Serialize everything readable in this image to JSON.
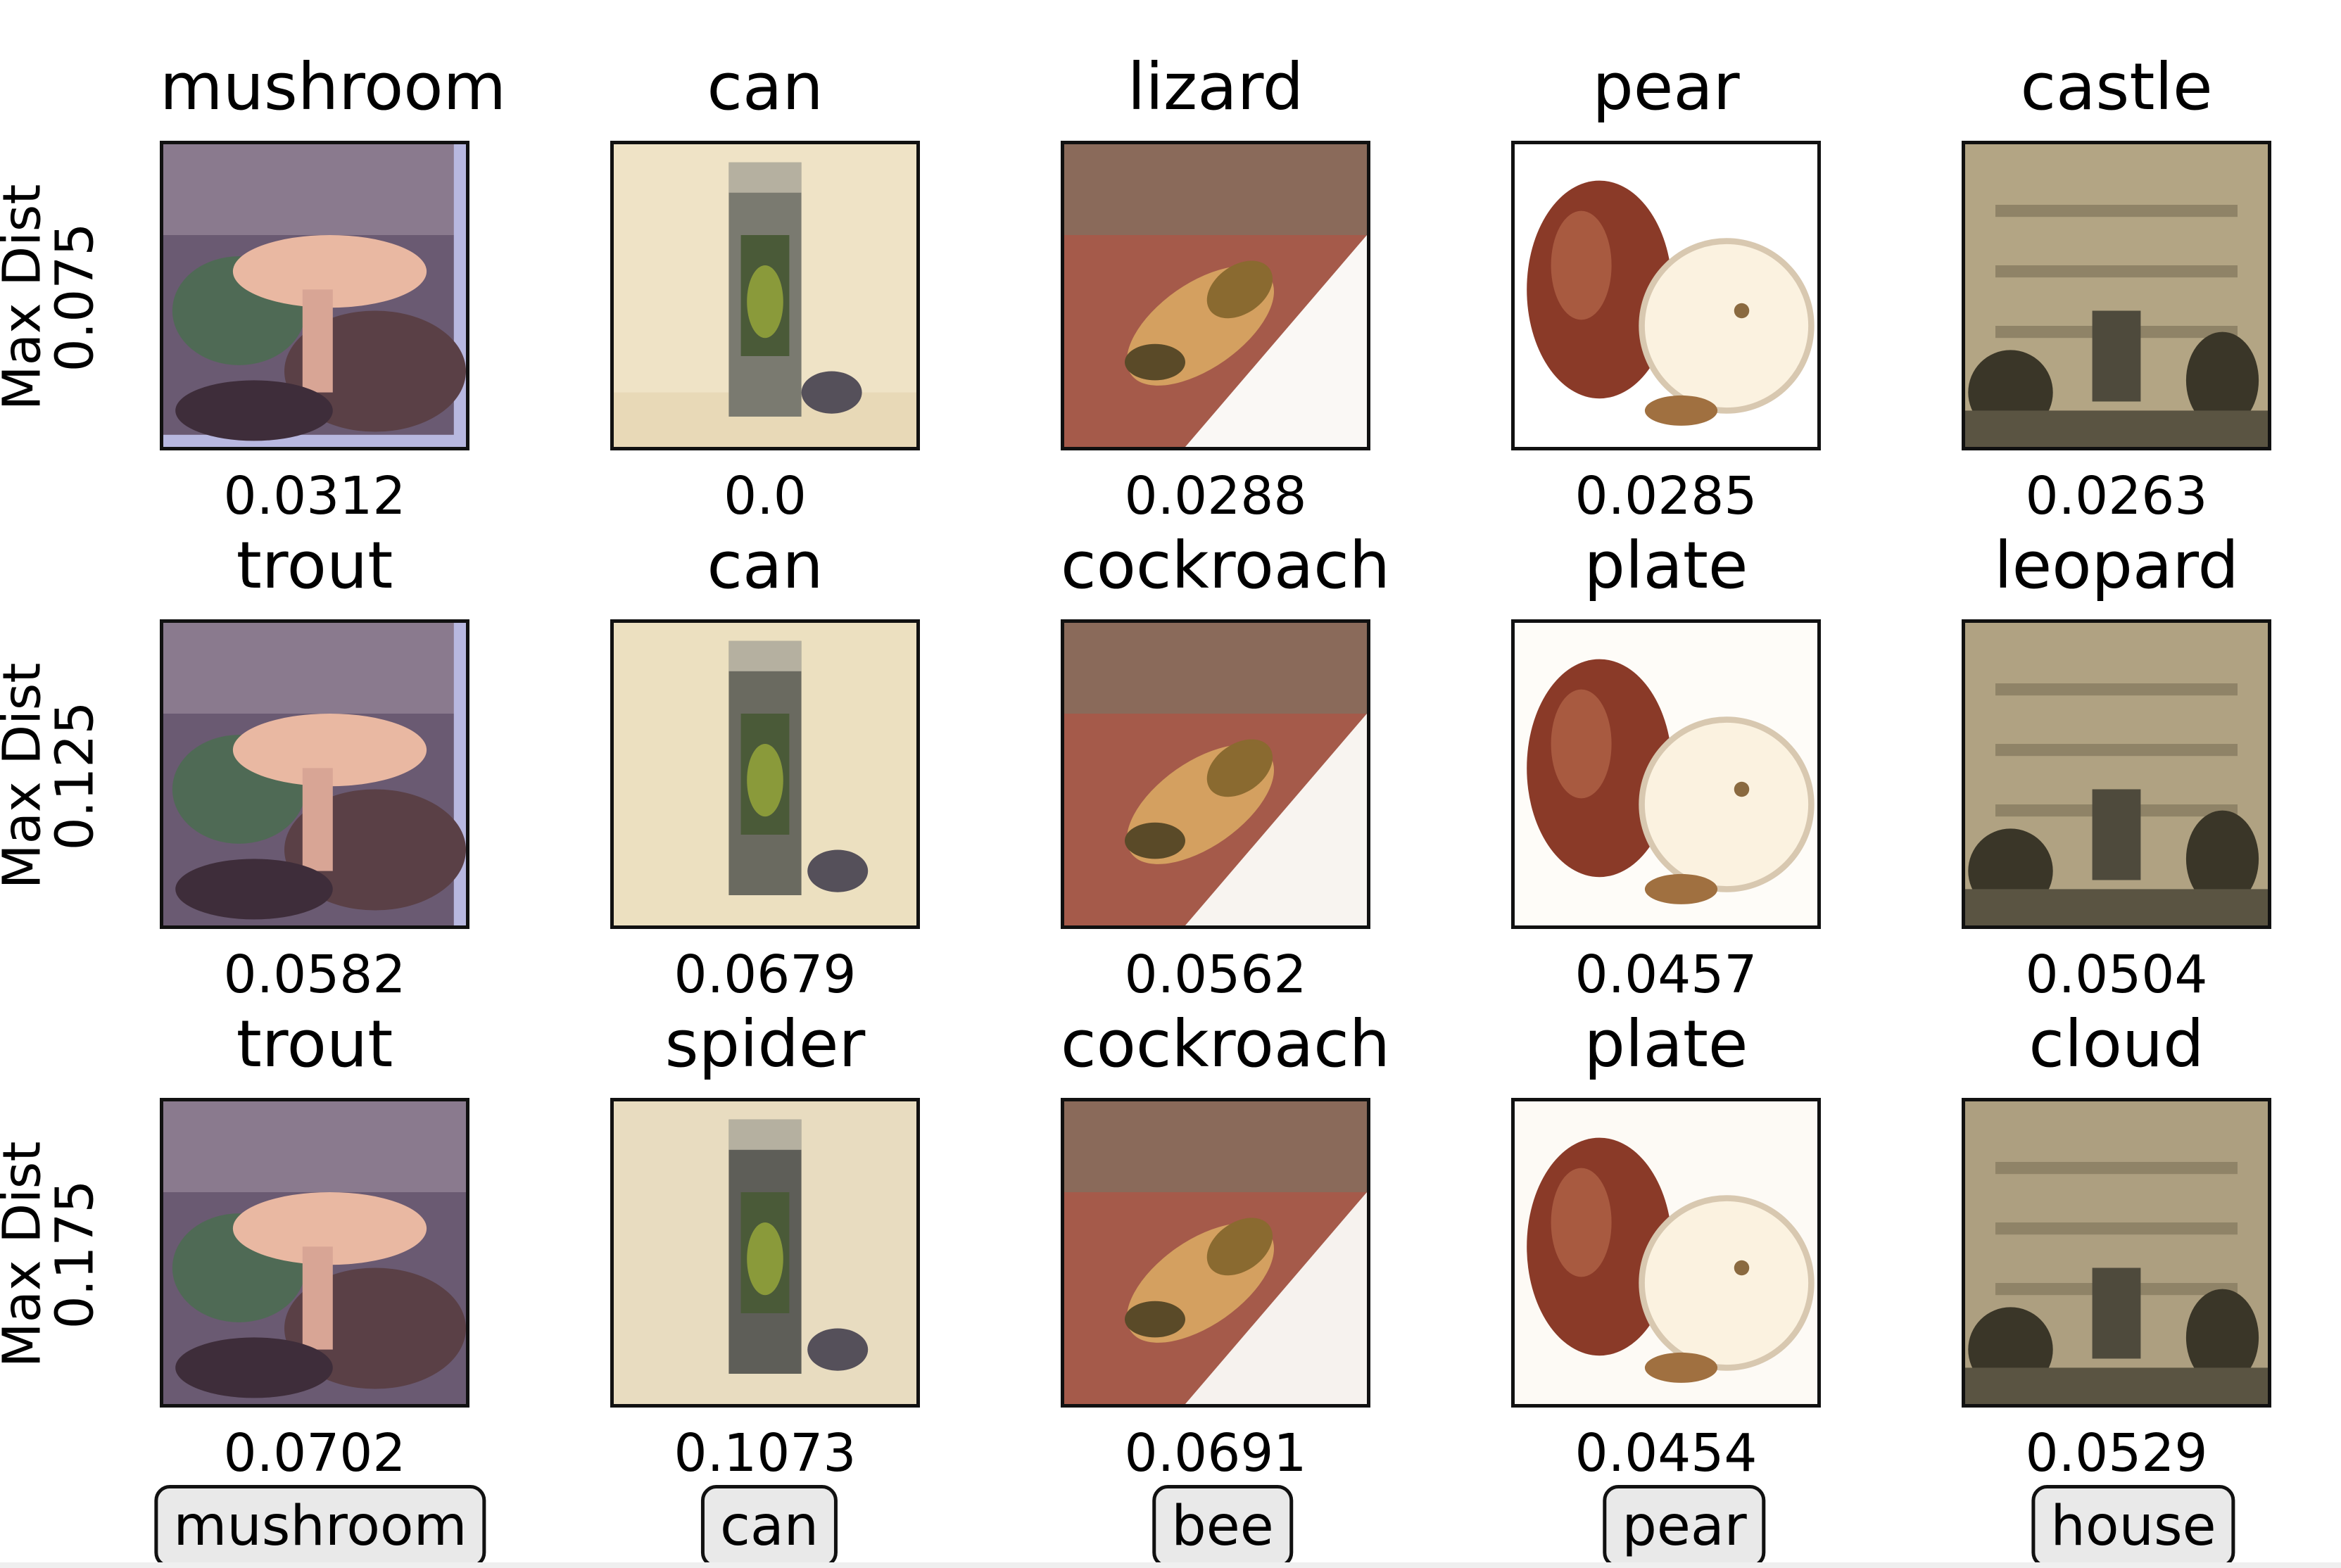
{
  "row_labels": [
    {
      "line1": "Max Dist",
      "line2": "0.075"
    },
    {
      "line1": "Max Dist",
      "line2": "0.125"
    },
    {
      "line1": "Max Dist",
      "line2": "0.175"
    }
  ],
  "grid": [
    [
      {
        "pred": "mushroom",
        "dist": "0.0312"
      },
      {
        "pred": "can",
        "dist": "0.0"
      },
      {
        "pred": "lizard",
        "dist": "0.0288"
      },
      {
        "pred": "pear",
        "dist": "0.0285"
      },
      {
        "pred": "castle",
        "dist": "0.0263"
      }
    ],
    [
      {
        "pred": "trout",
        "dist": "0.0582"
      },
      {
        "pred": "can",
        "dist": "0.0679"
      },
      {
        "pred": "cockroach",
        "dist": "0.0562"
      },
      {
        "pred": "plate",
        "dist": "0.0457"
      },
      {
        "pred": "leopard",
        "dist": "0.0504"
      }
    ],
    [
      {
        "pred": "trout",
        "dist": "0.0702"
      },
      {
        "pred": "spider",
        "dist": "0.1073"
      },
      {
        "pred": "cockroach",
        "dist": "0.0691"
      },
      {
        "pred": "plate",
        "dist": "0.0454"
      },
      {
        "pred": "cloud",
        "dist": "0.0529"
      }
    ]
  ],
  "true_labels": [
    "mushroom",
    "can",
    "bee",
    "pear",
    "house"
  ],
  "images": [
    "mushroom-photo",
    "bottle-photo",
    "bee-photo",
    "pear-photo",
    "building-photo"
  ]
}
